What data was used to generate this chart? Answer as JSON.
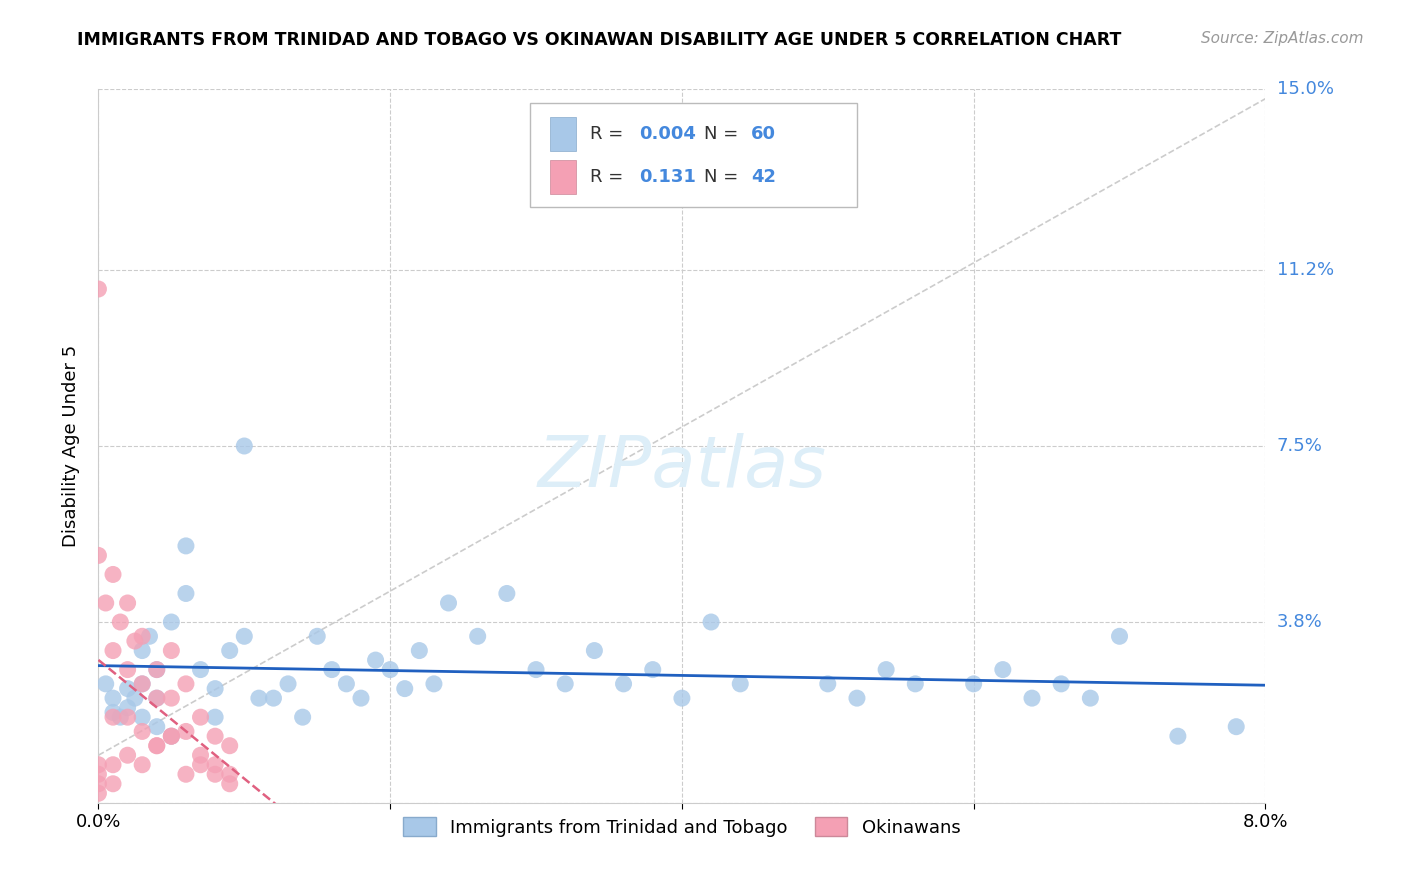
{
  "title": "IMMIGRANTS FROM TRINIDAD AND TOBAGO VS OKINAWAN DISABILITY AGE UNDER 5 CORRELATION CHART",
  "source": "Source: ZipAtlas.com",
  "ylabel": "Disability Age Under 5",
  "xlim": [
    0.0,
    0.08
  ],
  "ylim": [
    0.0,
    0.15
  ],
  "xtick_positions": [
    0.0,
    0.02,
    0.04,
    0.06,
    0.08
  ],
  "xtick_labels": [
    "0.0%",
    "",
    "",
    "",
    "8.0%"
  ],
  "ytick_positions": [
    0.0,
    0.038,
    0.075,
    0.112,
    0.15
  ],
  "ytick_labels": [
    "",
    "3.8%",
    "7.5%",
    "11.2%",
    "15.0%"
  ],
  "legend_label1": "Immigrants from Trinidad and Tobago",
  "legend_label2": "Okinawans",
  "r1": "0.004",
  "n1": "60",
  "r2": "0.131",
  "n2": "42",
  "color1": "#a8c8e8",
  "color2": "#f4a0b4",
  "trendline1_color": "#2060c0",
  "trendline2_color": "#e06080",
  "watermark_color": "#ddeef8",
  "grid_color": "#cccccc",
  "ytick_label_color": "#4488dd",
  "scatter1_x": [
    0.0005,
    0.001,
    0.001,
    0.0015,
    0.002,
    0.002,
    0.0025,
    0.003,
    0.003,
    0.003,
    0.0035,
    0.004,
    0.004,
    0.004,
    0.005,
    0.005,
    0.006,
    0.006,
    0.007,
    0.008,
    0.008,
    0.009,
    0.01,
    0.01,
    0.011,
    0.012,
    0.013,
    0.014,
    0.015,
    0.016,
    0.017,
    0.018,
    0.019,
    0.02,
    0.021,
    0.022,
    0.023,
    0.024,
    0.026,
    0.028,
    0.03,
    0.032,
    0.034,
    0.036,
    0.038,
    0.04,
    0.042,
    0.044,
    0.05,
    0.052,
    0.054,
    0.056,
    0.06,
    0.062,
    0.064,
    0.066,
    0.068,
    0.07,
    0.074,
    0.078
  ],
  "scatter1_y": [
    0.025,
    0.022,
    0.019,
    0.018,
    0.024,
    0.02,
    0.022,
    0.032,
    0.025,
    0.018,
    0.035,
    0.028,
    0.022,
    0.016,
    0.038,
    0.014,
    0.054,
    0.044,
    0.028,
    0.024,
    0.018,
    0.032,
    0.075,
    0.035,
    0.022,
    0.022,
    0.025,
    0.018,
    0.035,
    0.028,
    0.025,
    0.022,
    0.03,
    0.028,
    0.024,
    0.032,
    0.025,
    0.042,
    0.035,
    0.044,
    0.028,
    0.025,
    0.032,
    0.025,
    0.028,
    0.022,
    0.038,
    0.025,
    0.025,
    0.022,
    0.028,
    0.025,
    0.025,
    0.028,
    0.022,
    0.025,
    0.022,
    0.035,
    0.014,
    0.016
  ],
  "scatter2_x": [
    0.0,
    0.0,
    0.0,
    0.0,
    0.0005,
    0.001,
    0.001,
    0.001,
    0.0015,
    0.002,
    0.002,
    0.002,
    0.0025,
    0.003,
    0.003,
    0.003,
    0.004,
    0.004,
    0.004,
    0.005,
    0.005,
    0.005,
    0.006,
    0.006,
    0.007,
    0.007,
    0.008,
    0.008,
    0.009,
    0.009,
    0.0,
    0.001,
    0.002,
    0.003,
    0.004,
    0.005,
    0.006,
    0.007,
    0.008,
    0.009,
    0.0,
    0.001
  ],
  "scatter2_y": [
    0.108,
    0.052,
    0.008,
    0.004,
    0.042,
    0.048,
    0.032,
    0.018,
    0.038,
    0.042,
    0.028,
    0.018,
    0.034,
    0.035,
    0.025,
    0.015,
    0.028,
    0.022,
    0.012,
    0.032,
    0.022,
    0.014,
    0.025,
    0.015,
    0.018,
    0.01,
    0.014,
    0.008,
    0.012,
    0.006,
    0.006,
    0.008,
    0.01,
    0.008,
    0.012,
    0.014,
    0.006,
    0.008,
    0.006,
    0.004,
    0.002,
    0.004
  ]
}
